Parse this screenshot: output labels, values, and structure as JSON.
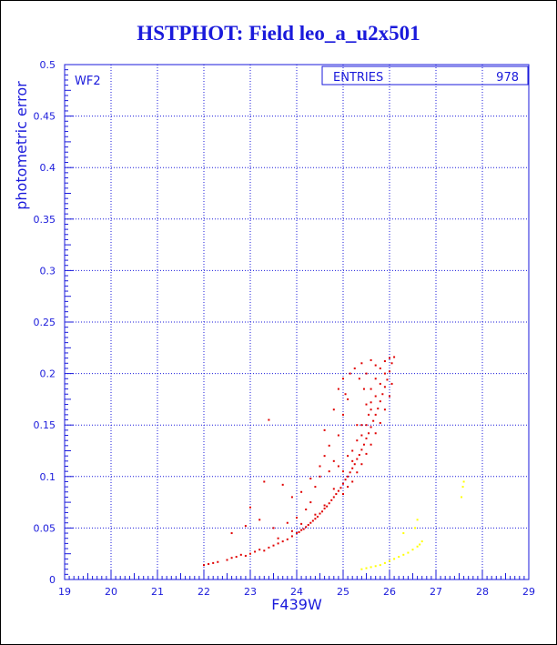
{
  "chart_data": {
    "type": "scatter",
    "title": "HSTPHOT: Field leo_a_u2x501",
    "xlabel": "F439W",
    "ylabel": "photometric error",
    "xlim": [
      19,
      29
    ],
    "ylim": [
      0,
      0.5
    ],
    "x_ticks": [
      "19",
      "20",
      "21",
      "22",
      "23",
      "24",
      "25",
      "26",
      "27",
      "28",
      "29"
    ],
    "y_ticks": [
      "0",
      "0.05",
      "0.1",
      "0.15",
      "0.2",
      "0.25",
      "0.3",
      "0.35",
      "0.4",
      "0.45",
      "0.5"
    ],
    "grid": true,
    "chip_label": "WF2",
    "stats_box": {
      "label": "ENTRIES",
      "value": "978"
    },
    "colors": {
      "axes": "#1a1adb",
      "main_series": "#e00000",
      "secondary_series": "#ffff00"
    },
    "series": [
      {
        "color": "#e00000",
        "points": [
          [
            22.0,
            0.014
          ],
          [
            22.1,
            0.015
          ],
          [
            22.2,
            0.016
          ],
          [
            22.3,
            0.017
          ],
          [
            22.5,
            0.019
          ],
          [
            22.6,
            0.021
          ],
          [
            22.7,
            0.022
          ],
          [
            22.8,
            0.024
          ],
          [
            22.9,
            0.023
          ],
          [
            23.0,
            0.025
          ],
          [
            23.1,
            0.027
          ],
          [
            23.2,
            0.029
          ],
          [
            23.3,
            0.028
          ],
          [
            23.4,
            0.031
          ],
          [
            23.5,
            0.033
          ],
          [
            23.6,
            0.035
          ],
          [
            23.7,
            0.037
          ],
          [
            23.8,
            0.039
          ],
          [
            23.9,
            0.042
          ],
          [
            24.0,
            0.045
          ],
          [
            24.05,
            0.046
          ],
          [
            24.1,
            0.048
          ],
          [
            24.15,
            0.049
          ],
          [
            24.2,
            0.051
          ],
          [
            24.25,
            0.053
          ],
          [
            24.3,
            0.055
          ],
          [
            24.35,
            0.057
          ],
          [
            24.4,
            0.059
          ],
          [
            24.45,
            0.061
          ],
          [
            24.5,
            0.064
          ],
          [
            24.55,
            0.066
          ],
          [
            24.6,
            0.069
          ],
          [
            24.65,
            0.071
          ],
          [
            24.7,
            0.074
          ],
          [
            24.75,
            0.077
          ],
          [
            24.8,
            0.08
          ],
          [
            24.85,
            0.083
          ],
          [
            24.9,
            0.086
          ],
          [
            24.95,
            0.089
          ],
          [
            25.0,
            0.093
          ],
          [
            25.05,
            0.097
          ],
          [
            25.1,
            0.1
          ],
          [
            25.15,
            0.104
          ],
          [
            25.2,
            0.108
          ],
          [
            25.25,
            0.112
          ],
          [
            25.3,
            0.117
          ],
          [
            25.35,
            0.121
          ],
          [
            25.4,
            0.126
          ],
          [
            25.45,
            0.131
          ],
          [
            25.5,
            0.137
          ],
          [
            25.55,
            0.142
          ],
          [
            25.6,
            0.148
          ],
          [
            25.65,
            0.154
          ],
          [
            25.7,
            0.16
          ],
          [
            25.75,
            0.166
          ],
          [
            25.8,
            0.173
          ],
          [
            25.85,
            0.18
          ],
          [
            25.9,
            0.187
          ],
          [
            25.95,
            0.194
          ],
          [
            26.0,
            0.202
          ],
          [
            26.05,
            0.21
          ],
          [
            26.1,
            0.216
          ],
          [
            25.0,
            0.083
          ],
          [
            25.1,
            0.09
          ],
          [
            25.2,
            0.095
          ],
          [
            25.3,
            0.104
          ],
          [
            25.4,
            0.112
          ],
          [
            25.5,
            0.122
          ],
          [
            25.6,
            0.131
          ],
          [
            25.7,
            0.142
          ],
          [
            25.8,
            0.152
          ],
          [
            25.9,
            0.165
          ],
          [
            26.0,
            0.178
          ],
          [
            26.05,
            0.19
          ],
          [
            25.2,
            0.125
          ],
          [
            25.3,
            0.135
          ],
          [
            25.4,
            0.14
          ],
          [
            25.5,
            0.15
          ],
          [
            25.6,
            0.165
          ],
          [
            25.7,
            0.178
          ],
          [
            25.8,
            0.19
          ],
          [
            25.9,
            0.2
          ],
          [
            25.5,
            0.17
          ],
          [
            25.6,
            0.185
          ],
          [
            25.7,
            0.195
          ],
          [
            25.8,
            0.205
          ],
          [
            25.9,
            0.212
          ],
          [
            26.0,
            0.215
          ],
          [
            25.4,
            0.21
          ],
          [
            25.6,
            0.213
          ],
          [
            24.9,
            0.14
          ],
          [
            25.0,
            0.16
          ],
          [
            25.1,
            0.175
          ],
          [
            24.6,
            0.12
          ],
          [
            24.7,
            0.13
          ],
          [
            24.8,
            0.115
          ],
          [
            24.5,
            0.1
          ],
          [
            24.4,
            0.09
          ],
          [
            24.3,
            0.075
          ],
          [
            24.2,
            0.068
          ],
          [
            24.0,
            0.06
          ],
          [
            23.8,
            0.055
          ],
          [
            23.5,
            0.05
          ],
          [
            23.2,
            0.058
          ],
          [
            22.9,
            0.052
          ],
          [
            22.6,
            0.045
          ],
          [
            23.3,
            0.095
          ],
          [
            23.7,
            0.092
          ],
          [
            23.0,
            0.07
          ],
          [
            23.4,
            0.155
          ],
          [
            24.6,
            0.145
          ],
          [
            24.8,
            0.165
          ],
          [
            24.9,
            0.185
          ],
          [
            25.0,
            0.195
          ],
          [
            25.05,
            0.18
          ],
          [
            25.15,
            0.2
          ],
          [
            25.25,
            0.205
          ],
          [
            25.35,
            0.195
          ],
          [
            25.45,
            0.185
          ],
          [
            25.55,
            0.16
          ],
          [
            23.9,
            0.08
          ],
          [
            24.1,
            0.085
          ],
          [
            24.3,
            0.098
          ],
          [
            24.5,
            0.11
          ],
          [
            24.7,
            0.105
          ],
          [
            24.9,
            0.11
          ],
          [
            25.1,
            0.12
          ],
          [
            25.3,
            0.15
          ],
          [
            25.5,
            0.2
          ],
          [
            25.7,
            0.208
          ],
          [
            23.6,
            0.04
          ],
          [
            23.9,
            0.047
          ],
          [
            24.1,
            0.054
          ],
          [
            24.4,
            0.063
          ],
          [
            24.6,
            0.072
          ],
          [
            24.8,
            0.088
          ],
          [
            25.0,
            0.105
          ],
          [
            25.2,
            0.115
          ],
          [
            25.4,
            0.15
          ],
          [
            25.6,
            0.172
          ]
        ]
      },
      {
        "color": "#ffff00",
        "points": [
          [
            25.4,
            0.01
          ],
          [
            25.5,
            0.011
          ],
          [
            25.6,
            0.012
          ],
          [
            25.7,
            0.013
          ],
          [
            25.8,
            0.014
          ],
          [
            25.9,
            0.016
          ],
          [
            26.0,
            0.018
          ],
          [
            26.1,
            0.02
          ],
          [
            26.2,
            0.022
          ],
          [
            26.3,
            0.024
          ],
          [
            26.4,
            0.026
          ],
          [
            26.5,
            0.029
          ],
          [
            26.6,
            0.032
          ],
          [
            26.65,
            0.034
          ],
          [
            26.7,
            0.037
          ],
          [
            26.55,
            0.05
          ],
          [
            26.6,
            0.058
          ],
          [
            26.3,
            0.045
          ],
          [
            27.55,
            0.08
          ],
          [
            27.58,
            0.09
          ],
          [
            27.6,
            0.095
          ]
        ]
      }
    ]
  }
}
